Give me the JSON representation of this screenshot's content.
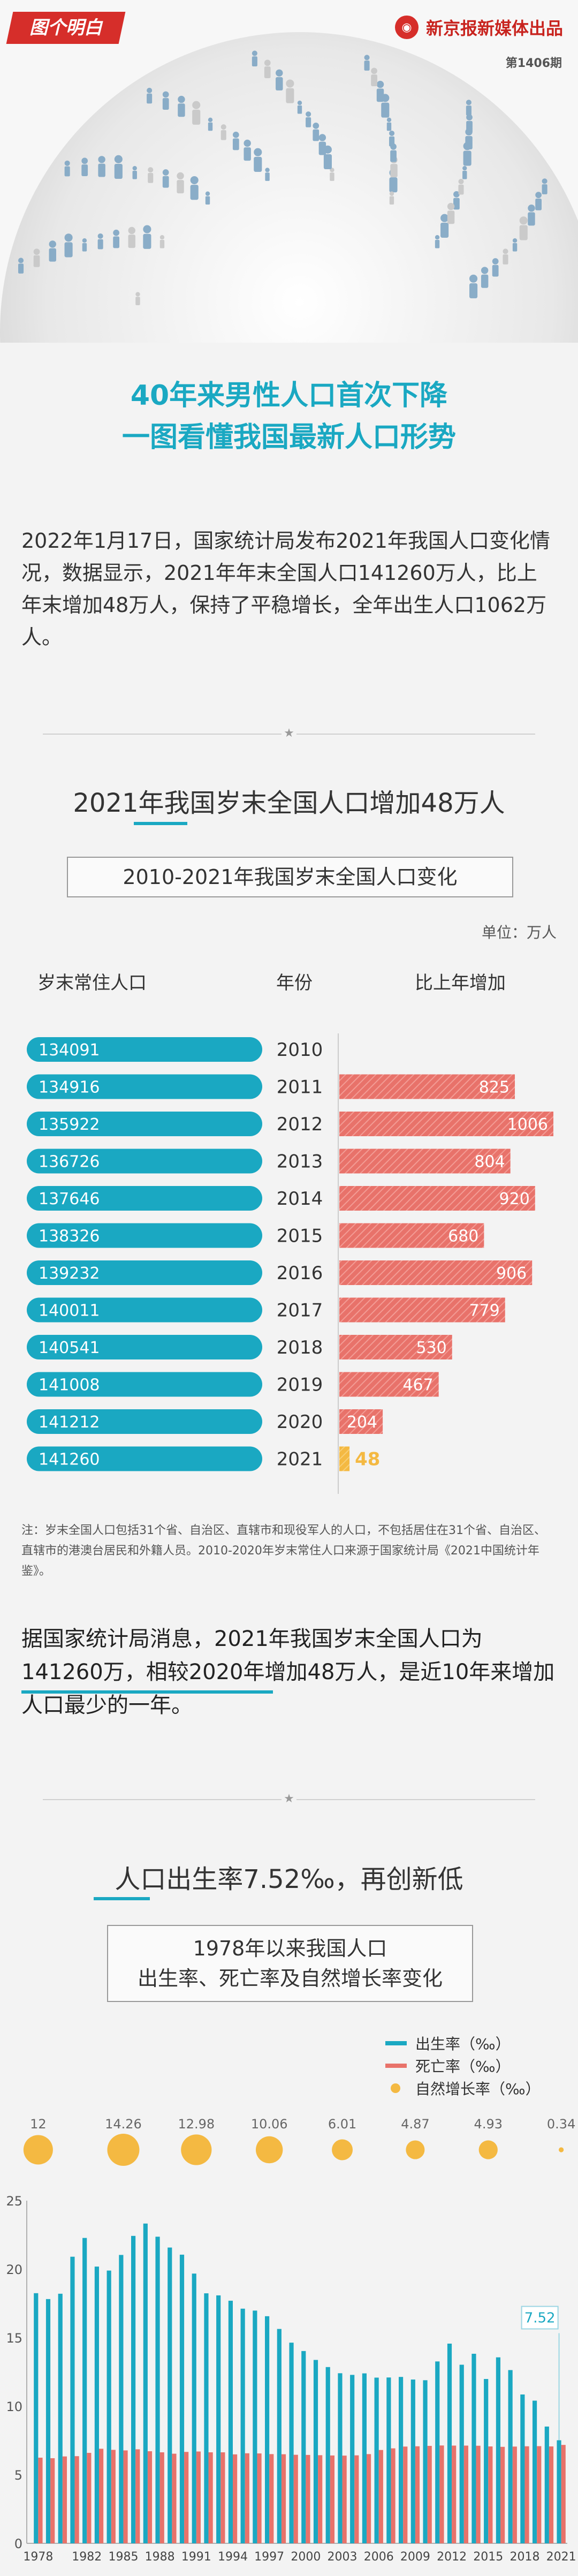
{
  "brand": {
    "logo_text": "图个明白",
    "publisher": "新京报新媒体出品",
    "issue": "第1406期"
  },
  "headline": {
    "line1": "40年来男性人口首次下降",
    "line2": "一图看懂我国最新人口形势"
  },
  "intro": "2022年1月17日，国家统计局发布2021年我国人口变化情况，数据显示，2021年年末全国人口141260万人，比上年末增加48万人，保持了平稳增长，全年出生人口1062万人。",
  "section1": {
    "title": "2021年我国岁末全国人口增加48万人",
    "subtitle": "2010-2021年我国岁末全国人口变化",
    "unit": "单位：万人",
    "col_population": "岁末常住人口",
    "col_year": "年份",
    "col_increase": "比上年增加",
    "note": "注：岁末全国人口包括31个省、自治区、直辖市和现役军人的人口，不包括居住在31个省、自治区、直辖市的港澳台居民和外籍人员。2010-2020年岁末常住人口来源于国家统计局《2021中国统计年鉴》。",
    "paragraph": "据国家统计局消息，2021年我国岁末全国人口为141260万，相较2020年增加48万人，是近10年来增加人口最少的一年。"
  },
  "section2": {
    "title": "人口出生率7.52‰，再创新低",
    "subtitle_line1": "1978年以来我国人口",
    "subtitle_line2": "出生率、死亡率及自然增长率变化",
    "legend_birth": "出生率（‰）",
    "legend_death": "死亡率（‰）",
    "legend_natural": "自然增长率（‰）"
  },
  "colors": {
    "teal": "#1aa8c2",
    "salmon": "#e8726a",
    "gold": "#f4b942",
    "red": "#d62e2a"
  },
  "chart_data": [
    {
      "type": "bar",
      "title": "2010-2021年我国岁末全国人口变化",
      "unit": "万人",
      "categories": [
        "2010",
        "2011",
        "2012",
        "2013",
        "2014",
        "2015",
        "2016",
        "2017",
        "2018",
        "2019",
        "2020",
        "2021"
      ],
      "series": [
        {
          "name": "岁末常住人口",
          "values": [
            134091,
            134916,
            135922,
            136726,
            137646,
            138326,
            139232,
            140011,
            140541,
            141008,
            141212,
            141260
          ]
        },
        {
          "name": "比上年增加",
          "values": [
            null,
            825,
            1006,
            804,
            920,
            680,
            906,
            779,
            530,
            467,
            204,
            48
          ]
        }
      ]
    },
    {
      "type": "bar",
      "title": "1978年以来我国人口出生率、死亡率及自然增长率变化",
      "x_tick_labels": [
        "1978",
        "1982",
        "1985",
        "1988",
        "1991",
        "1994",
        "1997",
        "2000",
        "2003",
        "2006",
        "2009",
        "2012",
        "2015",
        "2018",
        "2021"
      ],
      "ylim": [
        0,
        25
      ],
      "y_ticks": [
        0,
        5,
        10,
        15,
        20,
        25
      ],
      "x": [
        1978,
        1979,
        1980,
        1981,
        1982,
        1983,
        1984,
        1985,
        1986,
        1987,
        1988,
        1989,
        1990,
        1991,
        1992,
        1993,
        1994,
        1995,
        1996,
        1997,
        1998,
        1999,
        2000,
        2001,
        2002,
        2003,
        2004,
        2005,
        2006,
        2007,
        2008,
        2009,
        2010,
        2011,
        2012,
        2013,
        2014,
        2015,
        2016,
        2017,
        2018,
        2019,
        2020,
        2021
      ],
      "series": [
        {
          "name": "出生率（‰）",
          "values": [
            18.25,
            17.82,
            18.21,
            20.91,
            22.28,
            20.19,
            19.9,
            21.04,
            22.43,
            23.33,
            22.37,
            21.58,
            21.06,
            19.68,
            18.24,
            18.09,
            17.7,
            17.12,
            16.98,
            16.57,
            15.64,
            14.64,
            14.03,
            13.38,
            12.86,
            12.41,
            12.29,
            12.4,
            12.09,
            12.1,
            12.14,
            11.95,
            11.9,
            13.27,
            14.57,
            13.03,
            13.83,
            11.99,
            13.57,
            12.64,
            10.86,
            10.41,
            8.52,
            7.52
          ]
        },
        {
          "name": "死亡率（‰）",
          "values": [
            6.25,
            6.21,
            6.34,
            6.36,
            6.6,
            6.9,
            6.82,
            6.78,
            6.86,
            6.72,
            6.64,
            6.54,
            6.67,
            6.7,
            6.64,
            6.64,
            6.49,
            6.57,
            6.56,
            6.51,
            6.5,
            6.46,
            6.45,
            6.43,
            6.41,
            6.4,
            6.42,
            6.51,
            6.81,
            6.93,
            7.06,
            7.08,
            7.11,
            7.14,
            7.13,
            7.13,
            7.12,
            7.07,
            7.04,
            7.06,
            7.08,
            7.09,
            7.07,
            7.18
          ]
        },
        {
          "name": "自然增长率（‰）",
          "x": [
            1978,
            1985,
            1991,
            1997,
            2003,
            2009,
            2015,
            2021
          ],
          "values": [
            12,
            14.26,
            12.98,
            10.06,
            6.01,
            4.87,
            4.93,
            0.34
          ]
        }
      ],
      "annotation": "7.52"
    }
  ]
}
